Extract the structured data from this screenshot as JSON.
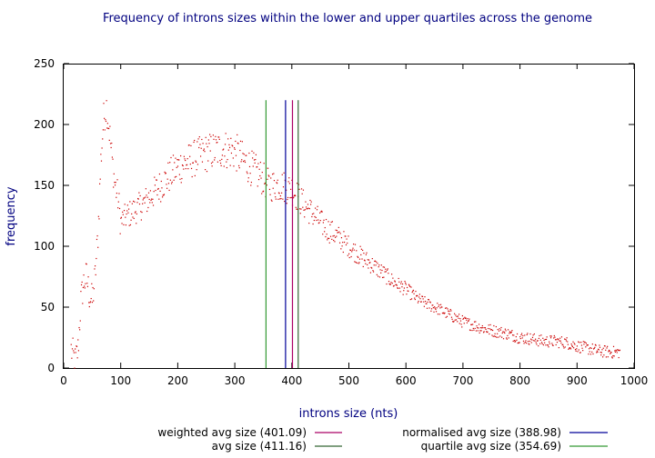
{
  "chart_data": {
    "type": "scatter",
    "title": "Frequency of introns sizes within the lower and upper quartiles across the genome",
    "xlabel": "introns size (nts)",
    "ylabel": "frequency",
    "xlim": [
      0,
      1000
    ],
    "ylim": [
      0,
      250
    ],
    "xticks": [
      "0",
      "100",
      "200",
      "300",
      "400",
      "500",
      "600",
      "700",
      "800",
      "900",
      "1000"
    ],
    "yticks": [
      "0",
      "50",
      "100",
      "150",
      "200",
      "250"
    ],
    "grid": false,
    "legend_position": "bottom",
    "point_color": "#cc0000",
    "curve_profile": {
      "x": [
        13,
        20,
        25,
        30,
        35,
        40,
        45,
        50,
        55,
        60,
        65,
        70,
        75,
        80,
        85,
        90,
        95,
        100,
        110,
        120,
        140,
        160,
        180,
        200,
        220,
        240,
        260,
        280,
        300,
        320,
        340,
        360,
        380,
        400,
        420,
        440,
        460,
        480,
        500,
        520,
        540,
        560,
        580,
        600,
        620,
        640,
        660,
        680,
        700,
        720,
        740,
        760,
        780,
        800,
        820,
        840,
        860,
        880,
        900,
        920,
        940,
        960,
        975
      ],
      "y": [
        15,
        5,
        15,
        55,
        70,
        75,
        60,
        55,
        75,
        110,
        170,
        205,
        215,
        195,
        170,
        150,
        140,
        120,
        125,
        128,
        135,
        145,
        155,
        165,
        170,
        175,
        178,
        180,
        178,
        168,
        160,
        150,
        150,
        147,
        135,
        125,
        115,
        108,
        100,
        92,
        85,
        78,
        70,
        65,
        57,
        52,
        48,
        43,
        38,
        35,
        32,
        30,
        28,
        25,
        24,
        22,
        22,
        21,
        18,
        16,
        14,
        13,
        13
      ]
    },
    "series": [
      {
        "name": "weighted avg size (401.09)",
        "x": 401.09,
        "y_range": [
          0,
          220
        ],
        "color": "#aa0066"
      },
      {
        "name": "normalised avg size (388.98)",
        "x": 388.98,
        "y_range": [
          0,
          220
        ],
        "color": "#000099"
      },
      {
        "name": "avg size (411.16)",
        "x": 411.16,
        "y_range": [
          0,
          220
        ],
        "color": "#336633"
      },
      {
        "name": "quartile avg size (354.69)",
        "x": 354.69,
        "y_range": [
          0,
          220
        ],
        "color": "#339933"
      }
    ]
  }
}
